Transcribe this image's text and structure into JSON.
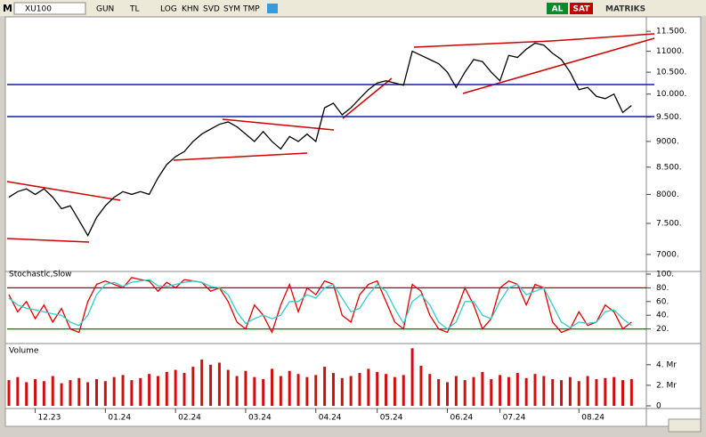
{
  "toolbar": {
    "menu": "M",
    "symbol": "XU100",
    "buttons": [
      "GUN",
      "TL",
      "LOG",
      "KHN",
      "SVD",
      "SYM",
      "TMP"
    ],
    "buy": "AL",
    "sell": "SAT",
    "brand": "MATRIKS"
  },
  "chart_data": [
    {
      "type": "line",
      "log": true,
      "ylim": [
        6780,
        11850
      ],
      "yticks": [
        {
          "value": 7000,
          "label": "7000."
        },
        {
          "value": 7500,
          "label": "7.500."
        },
        {
          "value": 8000,
          "label": "8000."
        },
        {
          "value": 8500,
          "label": "8.500."
        },
        {
          "value": 9000,
          "label": "9000."
        },
        {
          "value": 9500,
          "label": "9.500."
        },
        {
          "value": 10000,
          "label": "10.000."
        },
        {
          "value": 10500,
          "label": "10.500."
        },
        {
          "value": 11000,
          "label": "11000."
        },
        {
          "value": 11500,
          "label": "11.500."
        }
      ],
      "series": [
        {
          "color": "#000000",
          "values": [
            7950,
            8050,
            8100,
            8000,
            8100,
            7950,
            7750,
            7800,
            7550,
            7300,
            7600,
            7800,
            7950,
            8050,
            8000,
            8050,
            8000,
            8300,
            8550,
            8700,
            8800,
            9000,
            9150,
            9250,
            9350,
            9400,
            9300,
            9150,
            9000,
            9200,
            9000,
            8850,
            9100,
            9000,
            9150,
            9000,
            9700,
            9800,
            9550,
            9700,
            9900,
            10100,
            10250,
            10300,
            10250,
            10200,
            11000,
            10900,
            10800,
            10700,
            10500,
            10150,
            10500,
            10800,
            10750,
            10500,
            10300,
            10900,
            10850,
            11050,
            11200,
            11150,
            10950,
            10800,
            10500,
            10100,
            10150,
            9950,
            9900,
            10000,
            9600,
            9750
          ]
        }
      ]
    },
    {
      "type": "line",
      "title": "Stochastic,Slow",
      "ylim": [
        0,
        100
      ],
      "yticks": [
        {
          "value": 20,
          "label": "20."
        },
        {
          "value": 40,
          "label": "40."
        },
        {
          "value": 60,
          "label": "60."
        },
        {
          "value": 80,
          "label": "80."
        },
        {
          "value": 100,
          "label": "100."
        }
      ],
      "levels": [
        {
          "value": 80,
          "color": "#b00000"
        },
        {
          "value": 20,
          "color": "#008000"
        }
      ],
      "series": [
        {
          "color": "#e00000",
          "values": [
            70,
            45,
            60,
            35,
            55,
            30,
            50,
            20,
            15,
            60,
            85,
            90,
            85,
            80,
            95,
            92,
            90,
            75,
            88,
            80,
            92,
            90,
            88,
            75,
            80,
            60,
            30,
            20,
            55,
            40,
            15,
            55,
            85,
            45,
            80,
            70,
            90,
            85,
            40,
            30,
            70,
            85,
            90,
            60,
            30,
            20,
            85,
            75,
            40,
            20,
            15,
            45,
            80,
            55,
            20,
            35,
            80,
            90,
            85,
            55,
            85,
            80,
            30,
            15,
            20,
            45,
            25,
            30,
            55,
            45,
            20,
            30
          ]
        },
        {
          "color": "#33cccc",
          "values": [
            65,
            55,
            50,
            48,
            45,
            42,
            40,
            30,
            25,
            40,
            70,
            85,
            88,
            82,
            88,
            90,
            92,
            83,
            82,
            85,
            88,
            90,
            88,
            82,
            80,
            70,
            45,
            28,
            35,
            40,
            35,
            40,
            60,
            60,
            70,
            65,
            80,
            85,
            65,
            45,
            50,
            70,
            85,
            75,
            50,
            28,
            60,
            70,
            55,
            30,
            20,
            30,
            60,
            60,
            40,
            35,
            60,
            80,
            85,
            70,
            75,
            80,
            55,
            30,
            22,
            30,
            28,
            30,
            45,
            48,
            35,
            25
          ]
        }
      ]
    },
    {
      "type": "bar",
      "title": "Volume",
      "ylim": [
        0,
        5.8
      ],
      "color": "#d01010",
      "yticks": [
        0,
        {
          "value": 2,
          "label": "2. Mr"
        },
        {
          "value": 4,
          "label": "4. Mr"
        }
      ],
      "categories": [
        null,
        null,
        null,
        "12.23",
        null,
        null,
        null,
        null,
        null,
        null,
        null,
        "01.24",
        null,
        null,
        null,
        null,
        null,
        null,
        null,
        "02.24",
        null,
        null,
        null,
        null,
        null,
        null,
        null,
        "03.24",
        null,
        null,
        null,
        null,
        null,
        null,
        null,
        "04.24",
        null,
        null,
        null,
        null,
        null,
        null,
        "05.24",
        null,
        null,
        null,
        null,
        null,
        null,
        null,
        "06.24",
        null,
        null,
        null,
        null,
        null,
        "07.24",
        null,
        null,
        null,
        null,
        null,
        null,
        null,
        null,
        "08.24",
        null,
        null,
        null,
        null,
        null,
        null
      ],
      "values": [
        2.5,
        2.8,
        2.3,
        2.6,
        2.4,
        2.9,
        2.2,
        2.5,
        2.7,
        2.3,
        2.6,
        2.4,
        2.8,
        3,
        2.5,
        2.7,
        3.1,
        2.9,
        3.3,
        3.5,
        3.2,
        3.8,
        4.5,
        4,
        4.2,
        3.5,
        2.9,
        3.4,
        2.8,
        2.6,
        3.6,
        2.9,
        3.4,
        3.1,
        2.8,
        3,
        3.8,
        3.2,
        2.7,
        2.9,
        3.2,
        3.6,
        3.3,
        3.1,
        2.8,
        3,
        5.6,
        3.9,
        3.1,
        2.6,
        2.3,
        2.9,
        2.5,
        2.8,
        3.3,
        2.6,
        3,
        2.8,
        3.2,
        2.7,
        3.1,
        2.9,
        2.6,
        2.5,
        2.8,
        2.4,
        2.9,
        2.6,
        2.7,
        2.8,
        2.5,
        2.6
      ]
    }
  ]
}
